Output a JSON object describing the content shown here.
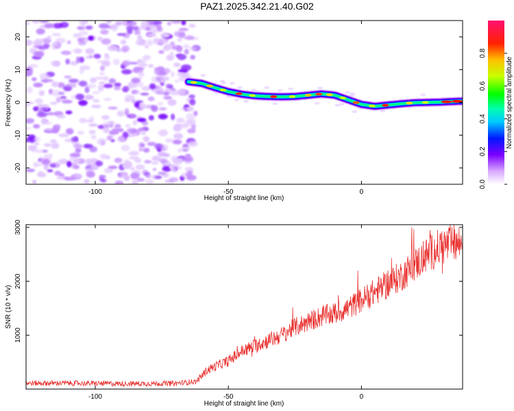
{
  "title": "PAZ1.2025.342.21.40.G02",
  "colors": {
    "snr_line": "#e8302e",
    "frame": "#000000"
  },
  "chart_data": [
    {
      "type": "heatmap",
      "name": "spectrogram",
      "xlabel": "Height of straight line (km)",
      "ylabel": "Frequency (Hz)",
      "xlim": [
        -126,
        38
      ],
      "ylim": [
        -25,
        25
      ],
      "xticks": [
        -100,
        -50,
        0
      ],
      "xtick_labels": [
        "-100",
        "-50",
        "0"
      ],
      "yticks": [
        20,
        10,
        0,
        -10,
        -20
      ],
      "ytick_labels": [
        "20",
        "10",
        "0",
        "-10",
        "-20"
      ],
      "noise_region_x": [
        -126,
        -62
      ],
      "ridge": {
        "x": [
          -65,
          -60,
          -55,
          -50,
          -45,
          -40,
          -35,
          -30,
          -25,
          -20,
          -15,
          -10,
          -5,
          0,
          5,
          10,
          15,
          20,
          25,
          30,
          35,
          38
        ],
        "freq": [
          6.3,
          5.8,
          4.5,
          3.3,
          2.5,
          2.0,
          1.8,
          1.7,
          1.8,
          2.2,
          2.6,
          2.2,
          0.8,
          -0.6,
          -1.2,
          -0.8,
          -0.4,
          -0.1,
          0.0,
          0.1,
          0.3,
          0.4
        ]
      },
      "colorbar": {
        "label": "Normalized spectral amplitude",
        "range": [
          0,
          1
        ],
        "ticks": [
          0.0,
          0.2,
          0.4,
          0.6,
          0.8
        ],
        "tick_labels": [
          "0.0",
          "0.2",
          "0.4",
          "0.6",
          "0.8"
        ]
      }
    },
    {
      "type": "line",
      "name": "snr",
      "xlabel": "Height of straight line (km)",
      "ylabel": "SNR (10 * v/v)",
      "xlim": [
        -126,
        38
      ],
      "ylim": [
        0,
        3050
      ],
      "xticks": [
        -100,
        -50,
        0
      ],
      "xtick_labels": [
        "-100",
        "-50",
        "0"
      ],
      "yticks": [
        1000,
        2000,
        3000
      ],
      "ytick_labels": [
        "1000",
        "2000",
        "3000"
      ],
      "trend": {
        "x": [
          -126,
          -110,
          -90,
          -70,
          -62,
          -58,
          -55,
          -50,
          -45,
          -40,
          -35,
          -30,
          -25,
          -20,
          -15,
          -10,
          -5,
          0,
          5,
          10,
          15,
          20,
          25,
          30,
          35,
          38
        ],
        "y": [
          110,
          110,
          100,
          105,
          140,
          350,
          420,
          520,
          700,
          800,
          900,
          1000,
          1150,
          1250,
          1350,
          1400,
          1500,
          1650,
          1800,
          1950,
          2100,
          2300,
          2500,
          2650,
          2700,
          2700
        ]
      }
    }
  ]
}
